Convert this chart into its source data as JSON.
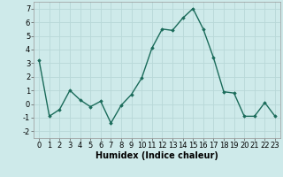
{
  "x": [
    0,
    1,
    2,
    3,
    4,
    5,
    6,
    7,
    8,
    9,
    10,
    11,
    12,
    13,
    14,
    15,
    16,
    17,
    18,
    19,
    20,
    21,
    22,
    23
  ],
  "y": [
    3.2,
    -0.9,
    -0.4,
    1.0,
    0.3,
    -0.2,
    0.2,
    -1.4,
    -0.1,
    0.7,
    1.9,
    4.1,
    5.5,
    5.4,
    6.3,
    7.0,
    5.5,
    3.4,
    0.9,
    0.8,
    -0.9,
    -0.9,
    0.1,
    -0.9
  ],
  "line_color": "#1a6b5a",
  "marker": "D",
  "marker_size": 1.8,
  "line_width": 1.0,
  "bg_color": "#ceeaea",
  "grid_color": "#b8d8d8",
  "xlabel": "Humidex (Indice chaleur)",
  "xlabel_fontsize": 7,
  "tick_fontsize": 6,
  "ylim": [
    -2.5,
    7.5
  ],
  "xlim": [
    -0.5,
    23.5
  ],
  "yticks": [
    -2,
    -1,
    0,
    1,
    2,
    3,
    4,
    5,
    6,
    7
  ],
  "xticks": [
    0,
    1,
    2,
    3,
    4,
    5,
    6,
    7,
    8,
    9,
    10,
    11,
    12,
    13,
    14,
    15,
    16,
    17,
    18,
    19,
    20,
    21,
    22,
    23
  ]
}
